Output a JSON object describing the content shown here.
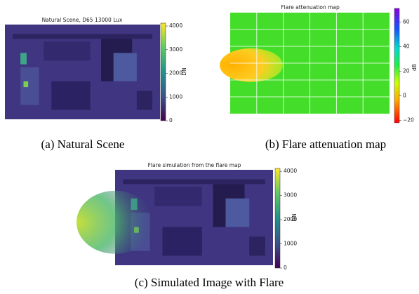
{
  "panels": [
    {
      "title": "Natural Scene, D65 13000 Lux",
      "caption": "(a) Natural Scene",
      "colorbar": {
        "label": "DN",
        "lim": [
          0,
          4120
        ],
        "ticks": [
          0,
          1000,
          2000,
          3000,
          4000
        ]
      }
    },
    {
      "title": "Flare attenuation map",
      "caption": "(b) Flare attenuation map",
      "colorbar": {
        "label": "dB",
        "lim": [
          -22,
          71
        ],
        "ticks": [
          {
            "value": -20,
            "label": "−20"
          },
          0,
          20,
          40,
          60
        ]
      }
    },
    {
      "title": "Flare simulation from the flare map",
      "caption": "(c) Simulated Image with Flare",
      "colorbar": {
        "label": "DN",
        "lim": [
          0,
          4120
        ],
        "ticks": [
          0,
          1000,
          2000,
          3000,
          4000
        ]
      }
    }
  ]
}
